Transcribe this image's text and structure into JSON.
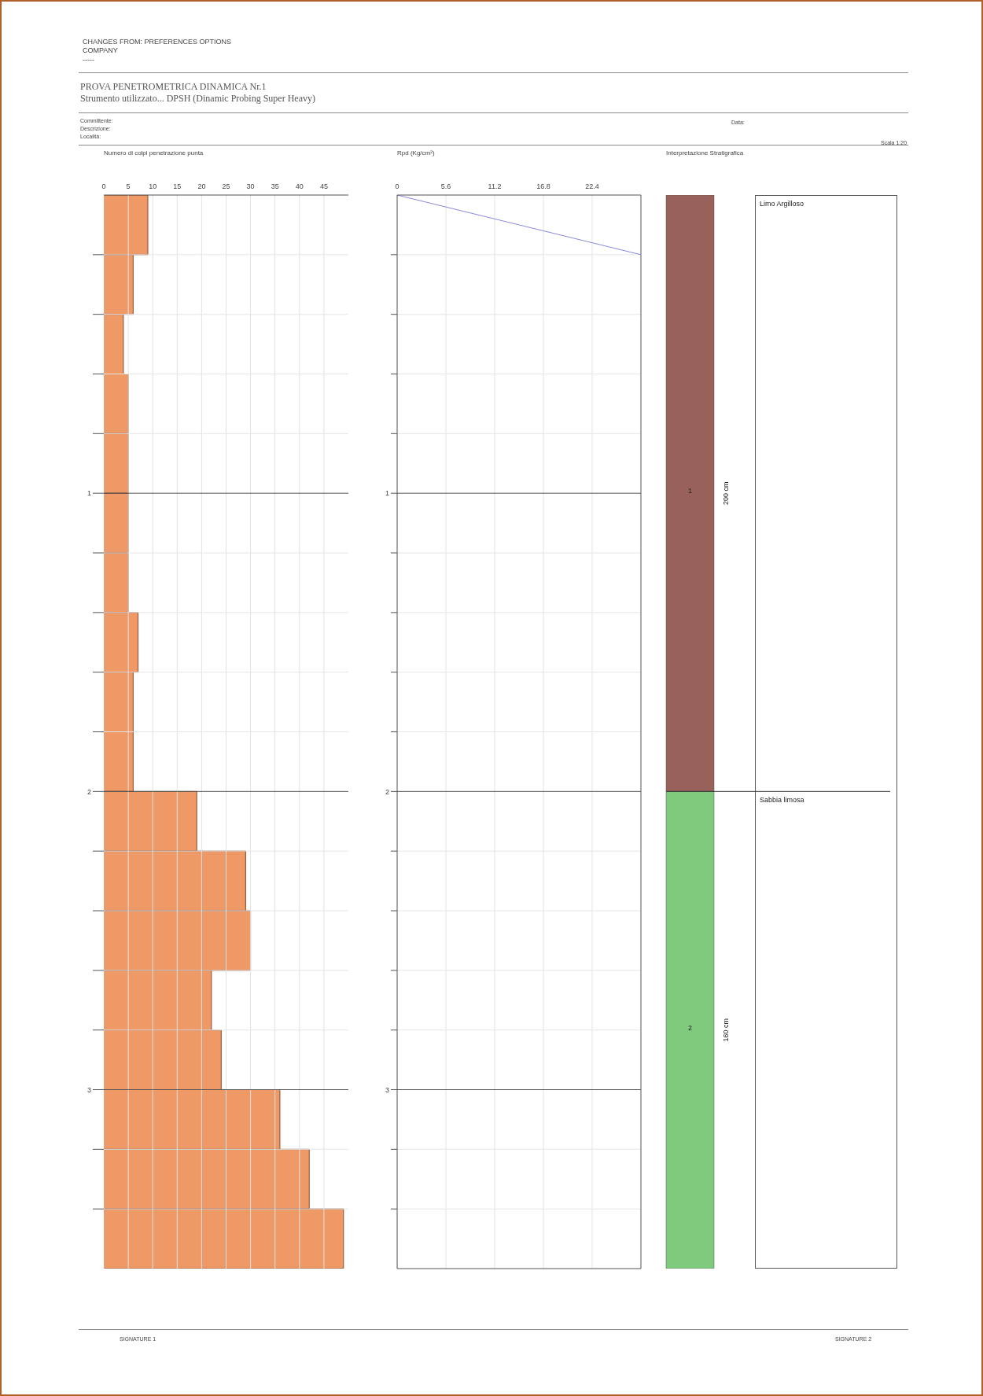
{
  "chart_data": [
    {
      "type": "histogram",
      "title": "PROVA PENETROMETRICA DINAMICA Nr.1",
      "subtitle": "Strumento utilizzato... DPSH (Dinamic Probing Super Heavy)",
      "xlabel": "Numero di colpi penetrazione punta",
      "orientation": "horizontal",
      "color": "#ee9966",
      "bins": [
        0,
        0.2,
        0.4,
        0.6,
        0.8,
        1.0,
        1.2,
        1.4,
        1.6,
        1.8,
        2.0,
        2.2,
        2.4,
        2.6,
        2.8,
        3.0,
        3.2,
        3.4,
        3.6
      ],
      "values": [
        9,
        6,
        4,
        5,
        5,
        5,
        5,
        7,
        6,
        6,
        19,
        29,
        30,
        22,
        24,
        36,
        42,
        49
      ],
      "xlim": [
        0,
        50
      ],
      "xticks": [
        0,
        5,
        10,
        15,
        20,
        25,
        30,
        35,
        40,
        45
      ],
      "ylim": [
        3.6,
        0
      ],
      "yticks": [
        {
          "value": 0.2,
          "label": null
        },
        {
          "value": 0.4,
          "label": null
        },
        {
          "value": 0.6,
          "label": null
        },
        {
          "value": 0.8,
          "label": null
        },
        1,
        {
          "value": 1.2,
          "label": null
        },
        {
          "value": 1.4,
          "label": null
        },
        {
          "value": 1.6,
          "label": null
        },
        {
          "value": 1.8,
          "label": null
        },
        2,
        {
          "value": 2.2,
          "label": null
        },
        {
          "value": 2.4,
          "label": null
        },
        {
          "value": 2.6,
          "label": null
        },
        {
          "value": 2.8,
          "label": null
        },
        3,
        {
          "value": 3.2,
          "label": null
        },
        {
          "value": 3.4,
          "label": null
        }
      ],
      "grid": true,
      "annotations": [
        "CHANGES FROM: PREFERENCES OPTIONS",
        "COMPANY",
        "-----",
        "Committente:",
        "Descrizione:",
        "Località:",
        "Data:",
        "Scala 1:20",
        "SIGNATURE 1",
        "SIGNATURE 2"
      ]
    },
    {
      "type": "line",
      "xlabel": "Rpd (Kg/cm²)",
      "x": [
        0,
        28
      ],
      "values": [
        0,
        0.2
      ],
      "color": "#8888dd",
      "marker": "none",
      "xlim": [
        0,
        28
      ],
      "xticks": [
        0,
        5.6,
        11.2,
        16.8,
        22.4
      ],
      "ylim": [
        3.6,
        0
      ],
      "yticks": [
        {
          "value": 0.2,
          "label": null
        },
        {
          "value": 0.4,
          "label": null
        },
        {
          "value": 0.6,
          "label": null
        },
        {
          "value": 0.8,
          "label": null
        },
        1,
        {
          "value": 1.2,
          "label": null
        },
        {
          "value": 1.4,
          "label": null
        },
        {
          "value": 1.6,
          "label": null
        },
        {
          "value": 1.8,
          "label": null
        },
        2,
        {
          "value": 2.2,
          "label": null
        },
        {
          "value": 2.4,
          "label": null
        },
        {
          "value": 2.6,
          "label": null
        },
        {
          "value": 2.8,
          "label": null
        },
        3,
        {
          "value": 3.2,
          "label": null
        },
        {
          "value": 3.4,
          "label": null
        }
      ],
      "grid": true
    },
    {
      "type": "bar",
      "title": "Interpretazione Stratigrafica",
      "categories": [
        null
      ],
      "stacked": true,
      "ylim": [
        3.6,
        0
      ],
      "tick_labels": false,
      "series": [
        {
          "name": "Limo Argilloso",
          "color": "#98625a",
          "values": [
            2.0
          ]
        },
        {
          "name": "Sabbia limosa",
          "color": "#7fca7c",
          "values": [
            1.6
          ]
        }
      ],
      "annotations": [
        "1",
        "200 cm",
        "2",
        "160 cm"
      ]
    }
  ]
}
